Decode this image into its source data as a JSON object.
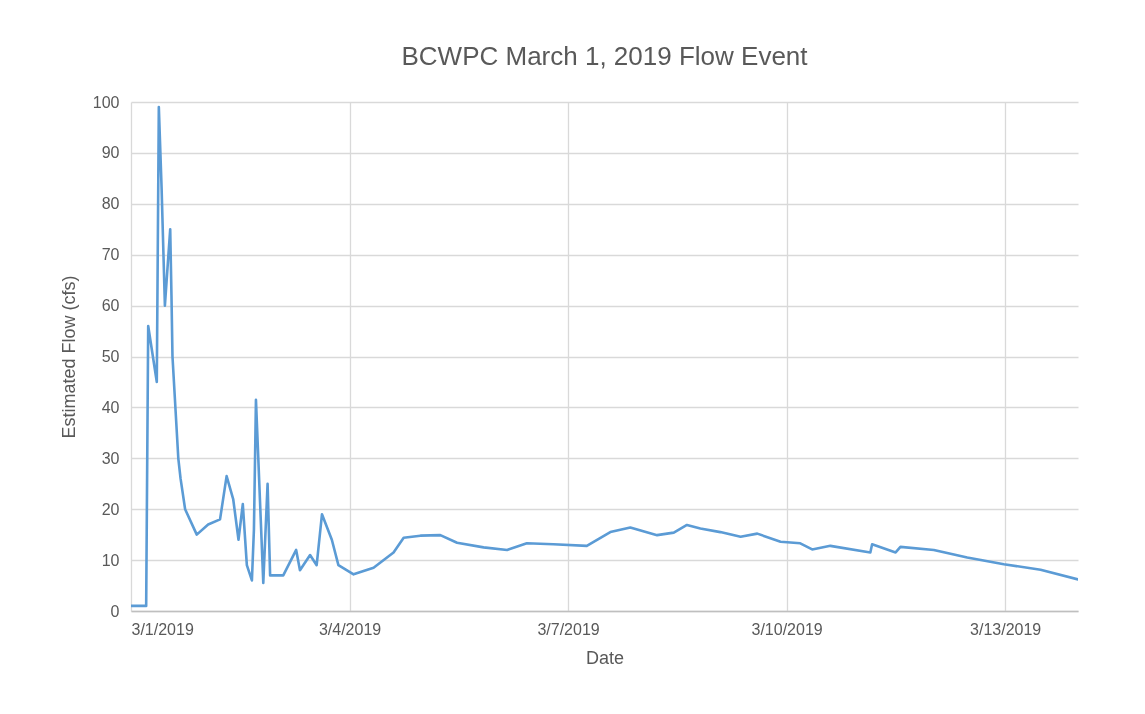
{
  "chart_data": {
    "type": "line",
    "title": "BCWPC March 1, 2019 Flow Event",
    "xlabel": "Date",
    "ylabel": "Estimated Flow (cfs)",
    "x": [
      "2019-03-01T00:00",
      "2019-03-01T05:00",
      "2019-03-01T05:40",
      "2019-03-01T08:30",
      "2019-03-01T09:10",
      "2019-03-01T10:05",
      "2019-03-01T11:10",
      "2019-03-01T12:55",
      "2019-03-01T13:20",
      "2019-03-01T13:40",
      "2019-03-01T15:35",
      "2019-03-01T16:20",
      "2019-03-01T17:50",
      "2019-03-01T21:40",
      "2019-03-02T01:25",
      "2019-03-02T05:20",
      "2019-03-02T07:30",
      "2019-03-02T09:40",
      "2019-03-02T11:25",
      "2019-03-02T12:50",
      "2019-03-02T14:10",
      "2019-03-02T15:50",
      "2019-03-02T16:30",
      "2019-03-02T17:10",
      "2019-03-02T19:35",
      "2019-03-02T21:00",
      "2019-03-02T21:50",
      "2019-03-03T02:10",
      "2019-03-03T06:25",
      "2019-03-03T07:40",
      "2019-03-03T11:00",
      "2019-03-03T13:10",
      "2019-03-03T14:55",
      "2019-03-03T18:10",
      "2019-03-03T20:20",
      "2019-03-04T01:20",
      "2019-03-04T07:55",
      "2019-03-04T14:30",
      "2019-03-04T17:50",
      "2019-03-04T23:20",
      "2019-03-05T05:55",
      "2019-03-05T11:25",
      "2019-03-05T20:10",
      "2019-03-06T03:55",
      "2019-03-06T10:25",
      "2019-03-06T19:10",
      "2019-03-07T06:10",
      "2019-03-07T13:55",
      "2019-03-07T20:30",
      "2019-03-08T05:20",
      "2019-03-08T10:50",
      "2019-03-08T15:10",
      "2019-03-08T19:35",
      "2019-03-09T02:10",
      "2019-03-09T08:50",
      "2019-03-09T14:20",
      "2019-03-09T22:00",
      "2019-03-10T04:30",
      "2019-03-10T08:25",
      "2019-03-10T14:25",
      "2019-03-11T03:35",
      "2019-03-11T04:10",
      "2019-03-11T11:55",
      "2019-03-11T13:30",
      "2019-03-12T00:30",
      "2019-03-12T11:30",
      "2019-03-12T23:35",
      "2019-03-13T11:40",
      "2019-03-14T00:00"
    ],
    "series": [
      {
        "color": "#5b9bd5",
        "values": [
          1,
          1,
          56,
          45,
          99,
          83,
          60,
          75,
          62,
          50,
          30,
          26,
          20,
          15,
          17,
          18,
          26.5,
          22,
          14,
          21,
          9,
          6,
          16,
          41.5,
          5.5,
          25,
          7,
          7,
          12,
          8,
          11,
          9,
          19,
          14,
          9,
          7.2,
          8.5,
          11.5,
          14.4,
          14.8,
          14.9,
          13.4,
          12.5,
          12,
          13.3,
          13.1,
          12.8,
          15.5,
          16.4,
          14.9,
          15.4,
          16.9,
          16.2,
          15.5,
          14.6,
          15.2,
          13.6,
          13.3,
          12.1,
          12.8,
          11.5,
          13.1,
          11.5,
          12.6,
          12,
          10.5,
          9.2,
          8.1,
          6.2
        ]
      }
    ],
    "xlim": [
      "2019-03-01",
      "2019-03-14"
    ],
    "xticks": [
      {
        "value": "2019-03-01",
        "label": "3/1/2019"
      },
      {
        "value": "2019-03-04",
        "label": "3/4/2019"
      },
      {
        "value": "2019-03-07",
        "label": "3/7/2019"
      },
      {
        "value": "2019-03-10",
        "label": "3/10/2019"
      },
      {
        "value": "2019-03-13",
        "label": "3/13/2019"
      }
    ],
    "ylim": [
      0,
      100
    ],
    "yticks": [
      0,
      10,
      20,
      30,
      40,
      50,
      60,
      70,
      80,
      90,
      100
    ],
    "grid": true,
    "marker": "none",
    "line_style": "solid"
  }
}
